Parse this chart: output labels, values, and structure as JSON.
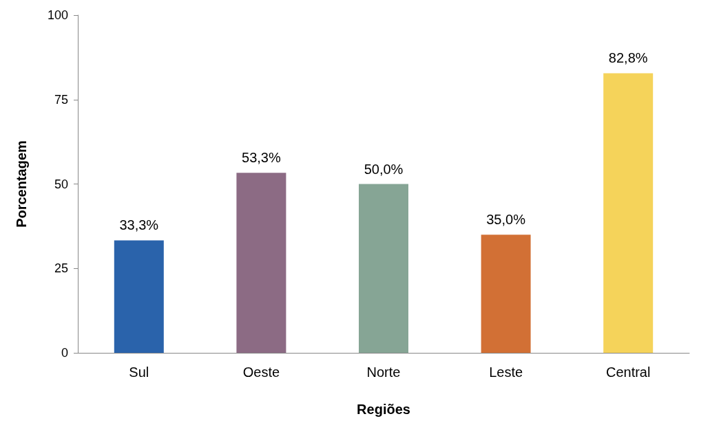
{
  "chart_data": {
    "type": "bar",
    "xlabel": "Regiões",
    "ylabel": "Porcentagem",
    "categories": [
      "Sul",
      "Oeste",
      "Norte",
      "Leste",
      "Central"
    ],
    "values": [
      33.3,
      53.3,
      50.0,
      35.0,
      82.8
    ],
    "value_labels": [
      "33,3%",
      "53,3%",
      "50,0%",
      "35,0%",
      "82,8%"
    ],
    "colors": [
      "#2a63ab",
      "#8c6b84",
      "#86a595",
      "#d27035",
      "#f5d35a"
    ],
    "ylim": [
      0,
      100
    ],
    "yticks": [
      0,
      25,
      50,
      75,
      100
    ],
    "grid": false
  }
}
